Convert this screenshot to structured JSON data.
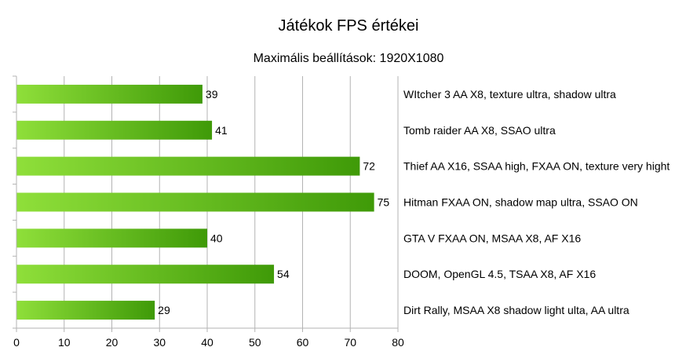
{
  "chart_data": {
    "type": "bar",
    "orientation": "horizontal",
    "title": "Játékok FPS értékei",
    "subtitle": "Maximális beállítások: 1920X1080",
    "categories": [
      "WItcher 3 AA X8, texture ultra, shadow ultra",
      "Tomb raider AA X8, SSAO ultra",
      "Thief AA X16, SSAA high, FXAA ON, texture very hight",
      "Hitman FXAA ON, shadow map ultra, SSAO ON",
      "GTA V FXAA ON, MSAA X8, AF X16",
      "DOOM, OpenGL 4.5, TSAA X8, AF X16",
      "Dirt Rally, MSAA X8 shadow light ulta, AA ultra"
    ],
    "values": [
      39,
      41,
      72,
      75,
      40,
      54,
      29
    ],
    "xlim": [
      0,
      80
    ],
    "xticks": [
      0,
      10,
      20,
      30,
      40,
      50,
      60,
      70,
      80
    ],
    "grid": true,
    "category_labels_position": "right",
    "colors": {
      "bar_light": "#8fdf3a",
      "bar_dark": "#3f9a08",
      "grid": "#b3b3b3",
      "axis": "#b3b3b3"
    }
  }
}
